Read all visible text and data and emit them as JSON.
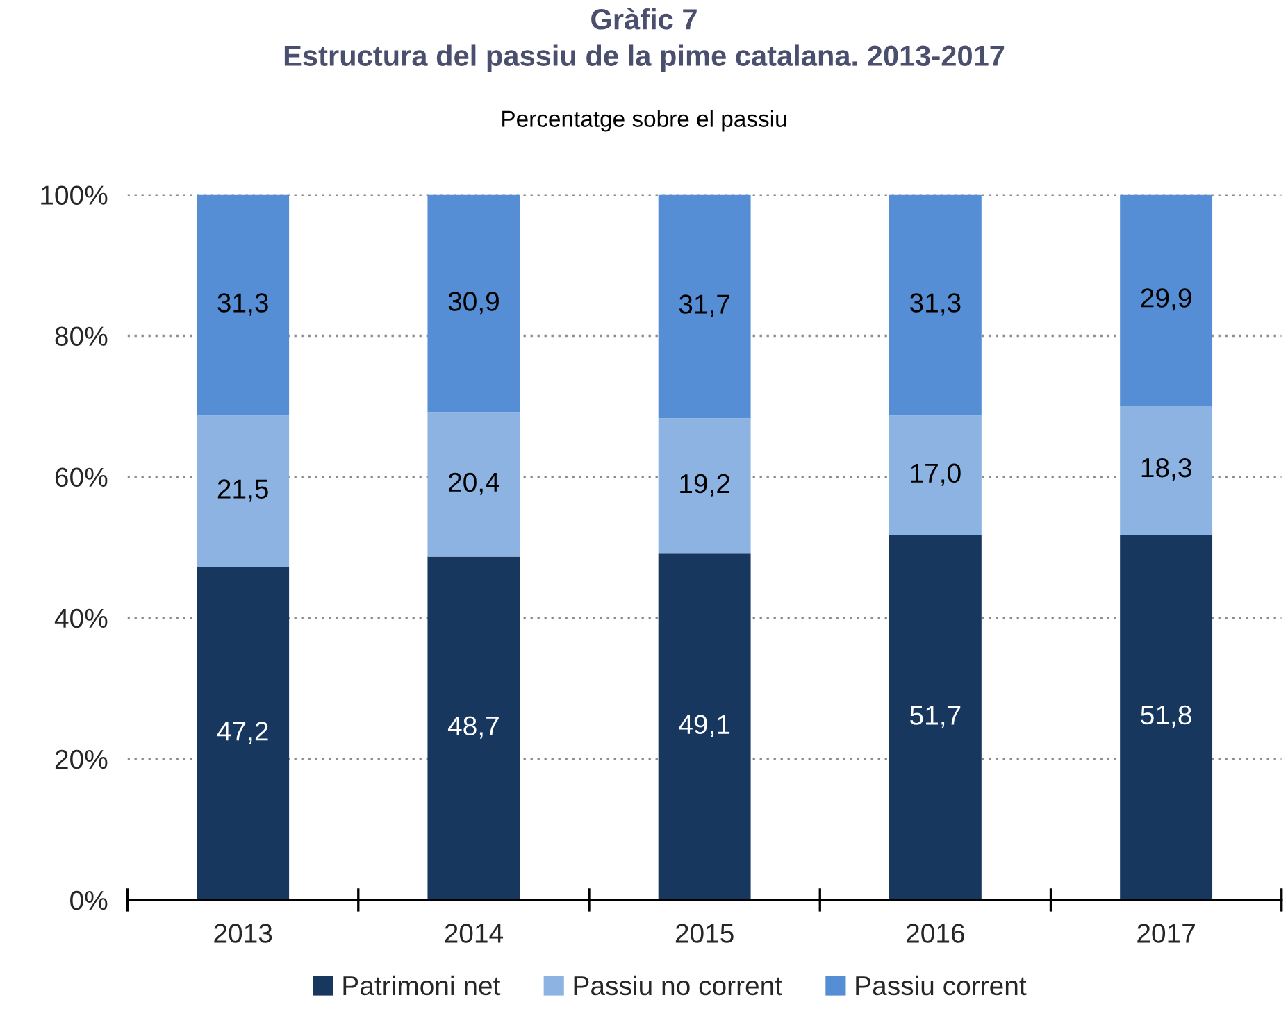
{
  "chart_data": {
    "type": "bar",
    "title": "Gràfic 7\nEstructura del passiu de la pime catalana. 2013-2017",
    "subtitle": "Percentatge sobre el passiu",
    "categories": [
      "2013",
      "2014",
      "2015",
      "2016",
      "2017"
    ],
    "stacked": true,
    "series": [
      {
        "name": "Patrimoni net",
        "color": "#17375e",
        "values": [
          47.2,
          48.7,
          49.1,
          51.7,
          51.8
        ],
        "value_labels": [
          "47,2",
          "48,7",
          "49,1",
          "51,7",
          "51,8"
        ]
      },
      {
        "name": "Passiu no corrent",
        "color": "#8db3e2",
        "values": [
          21.5,
          20.4,
          19.2,
          17.0,
          18.3
        ],
        "value_labels": [
          "21,5",
          "20,4",
          "19,2",
          "17,0",
          "18,3"
        ]
      },
      {
        "name": "Passiu corrent",
        "color": "#558ed5",
        "values": [
          31.3,
          30.9,
          31.7,
          31.3,
          29.9
        ],
        "value_labels": [
          "31,3",
          "30,9",
          "31,7",
          "31,3",
          "29,9"
        ]
      }
    ],
    "ylim": [
      0,
      100
    ],
    "yticks": [
      {
        "value": 0,
        "label": "0%"
      },
      {
        "value": 20,
        "label": "20%"
      },
      {
        "value": 40,
        "label": "40%"
      },
      {
        "value": 60,
        "label": "60%"
      },
      {
        "value": 80,
        "label": "80%"
      },
      {
        "value": 100,
        "label": "100%"
      }
    ],
    "grid": "y",
    "legend": "bottom"
  }
}
